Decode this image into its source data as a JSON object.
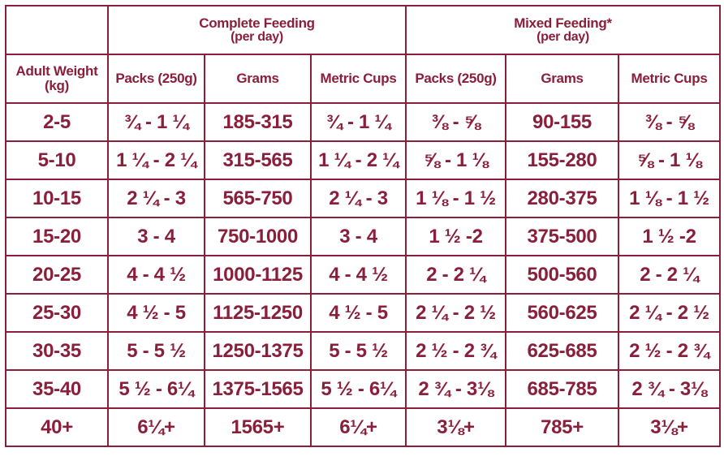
{
  "groups": {
    "complete": {
      "title": "Complete Feeding",
      "subtitle": "(per day)"
    },
    "mixed": {
      "title": "Mixed Feeding*",
      "subtitle": "(per day)"
    }
  },
  "columns": {
    "weight": "Adult Weight (kg)",
    "complete_packs": "Packs (250g)",
    "complete_grams": "Grams",
    "complete_cups": "Metric Cups",
    "mixed_packs": "Packs (250g)",
    "mixed_grams": "Grams",
    "mixed_cups": "Metric Cups"
  },
  "rows": [
    {
      "weight": "2-5",
      "c_packs": "¾ - 1 ¼",
      "c_grams": "185-315",
      "c_cups": "¾ - 1 ¼",
      "m_packs": "⅜ - ⅝",
      "m_grams": "90-155",
      "m_cups": "⅜ - ⅝"
    },
    {
      "weight": "5-10",
      "c_packs": "1 ¼ - 2 ¼",
      "c_grams": "315-565",
      "c_cups": "1 ¼ - 2 ¼",
      "m_packs": "⅝ - 1 ⅛",
      "m_grams": "155-280",
      "m_cups": "⅝ - 1 ⅛"
    },
    {
      "weight": "10-15",
      "c_packs": "2 ¼ - 3",
      "c_grams": "565-750",
      "c_cups": "2 ¼ - 3",
      "m_packs": "1 ⅛ - 1 ½",
      "m_grams": "280-375",
      "m_cups": "1 ⅛ - 1 ½"
    },
    {
      "weight": "15-20",
      "c_packs": "3 - 4",
      "c_grams": "750-1000",
      "c_cups": "3 - 4",
      "m_packs": "1 ½ -2",
      "m_grams": "375-500",
      "m_cups": "1 ½ -2"
    },
    {
      "weight": "20-25",
      "c_packs": "4 - 4 ½",
      "c_grams": "1000-1125",
      "c_cups": "4 - 4 ½",
      "m_packs": "2 - 2 ¼",
      "m_grams": "500-560",
      "m_cups": "2 - 2 ¼"
    },
    {
      "weight": "25-30",
      "c_packs": "4 ½ - 5",
      "c_grams": "1125-1250",
      "c_cups": "4 ½ - 5",
      "m_packs": "2 ¼ - 2 ½",
      "m_grams": "560-625",
      "m_cups": "2 ¼ - 2 ½"
    },
    {
      "weight": "30-35",
      "c_packs": "5 - 5 ½",
      "c_grams": "1250-1375",
      "c_cups": "5 - 5 ½",
      "m_packs": "2 ½ - 2 ¾",
      "m_grams": "625-685",
      "m_cups": "2 ½ - 2 ¾"
    },
    {
      "weight": "35-40",
      "c_packs": "5 ½ - 6¼",
      "c_grams": "1375-1565",
      "c_cups": "5 ½ - 6¼",
      "m_packs": "2 ¾ - 3⅛",
      "m_grams": "685-785",
      "m_cups": "2 ¾ - 3⅛"
    },
    {
      "weight": "40+",
      "c_packs": "6¼+",
      "c_grams": "1565+",
      "c_cups": "6¼+",
      "m_packs": "3⅛+",
      "m_grams": "785+",
      "m_cups": "3⅛+"
    }
  ],
  "colors": {
    "primary": "#8a1f3c",
    "background": "#ffffff"
  }
}
